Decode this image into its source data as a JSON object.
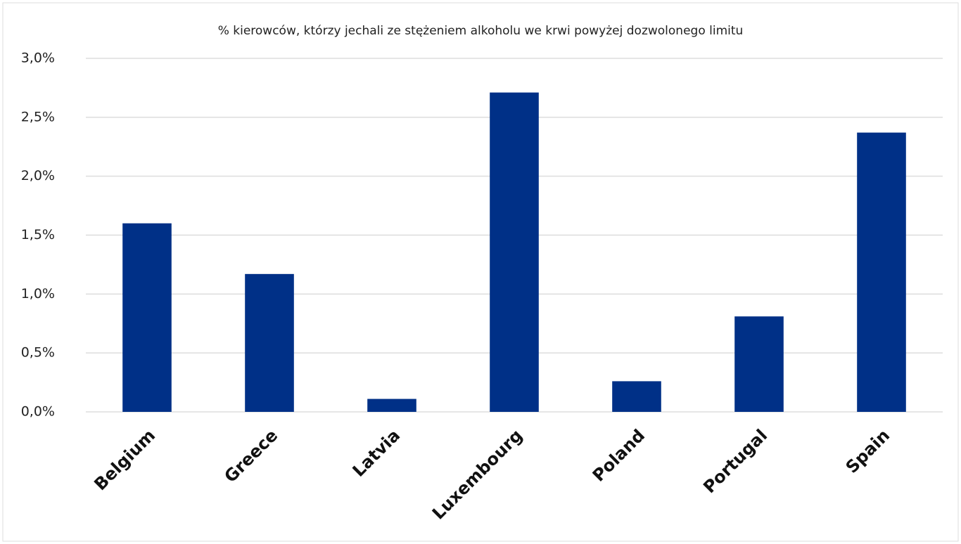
{
  "chart_data": {
    "type": "bar",
    "title": "% kierowców, którzy jechali ze stężeniem alkoholu we krwi powyżej dozwolonego limitu",
    "categories": [
      "Belgium",
      "Greece",
      "Latvia",
      "Luxembourg",
      "Poland",
      "Portugal",
      "Spain"
    ],
    "values": [
      1.6,
      1.17,
      0.11,
      2.71,
      0.26,
      0.81,
      2.37
    ],
    "color": "#003087",
    "ylim": [
      0,
      3
    ],
    "yticks": [
      {
        "value": 0,
        "label": "0,0%"
      },
      {
        "value": 0.5,
        "label": "0,5%"
      },
      {
        "value": 1,
        "label": "1,0%"
      },
      {
        "value": 1.5,
        "label": "1,5%"
      },
      {
        "value": 2,
        "label": "2,0%"
      },
      {
        "value": 2.5,
        "label": "2,5%"
      },
      {
        "value": 3,
        "label": "3,0%"
      }
    ],
    "grid": true
  }
}
